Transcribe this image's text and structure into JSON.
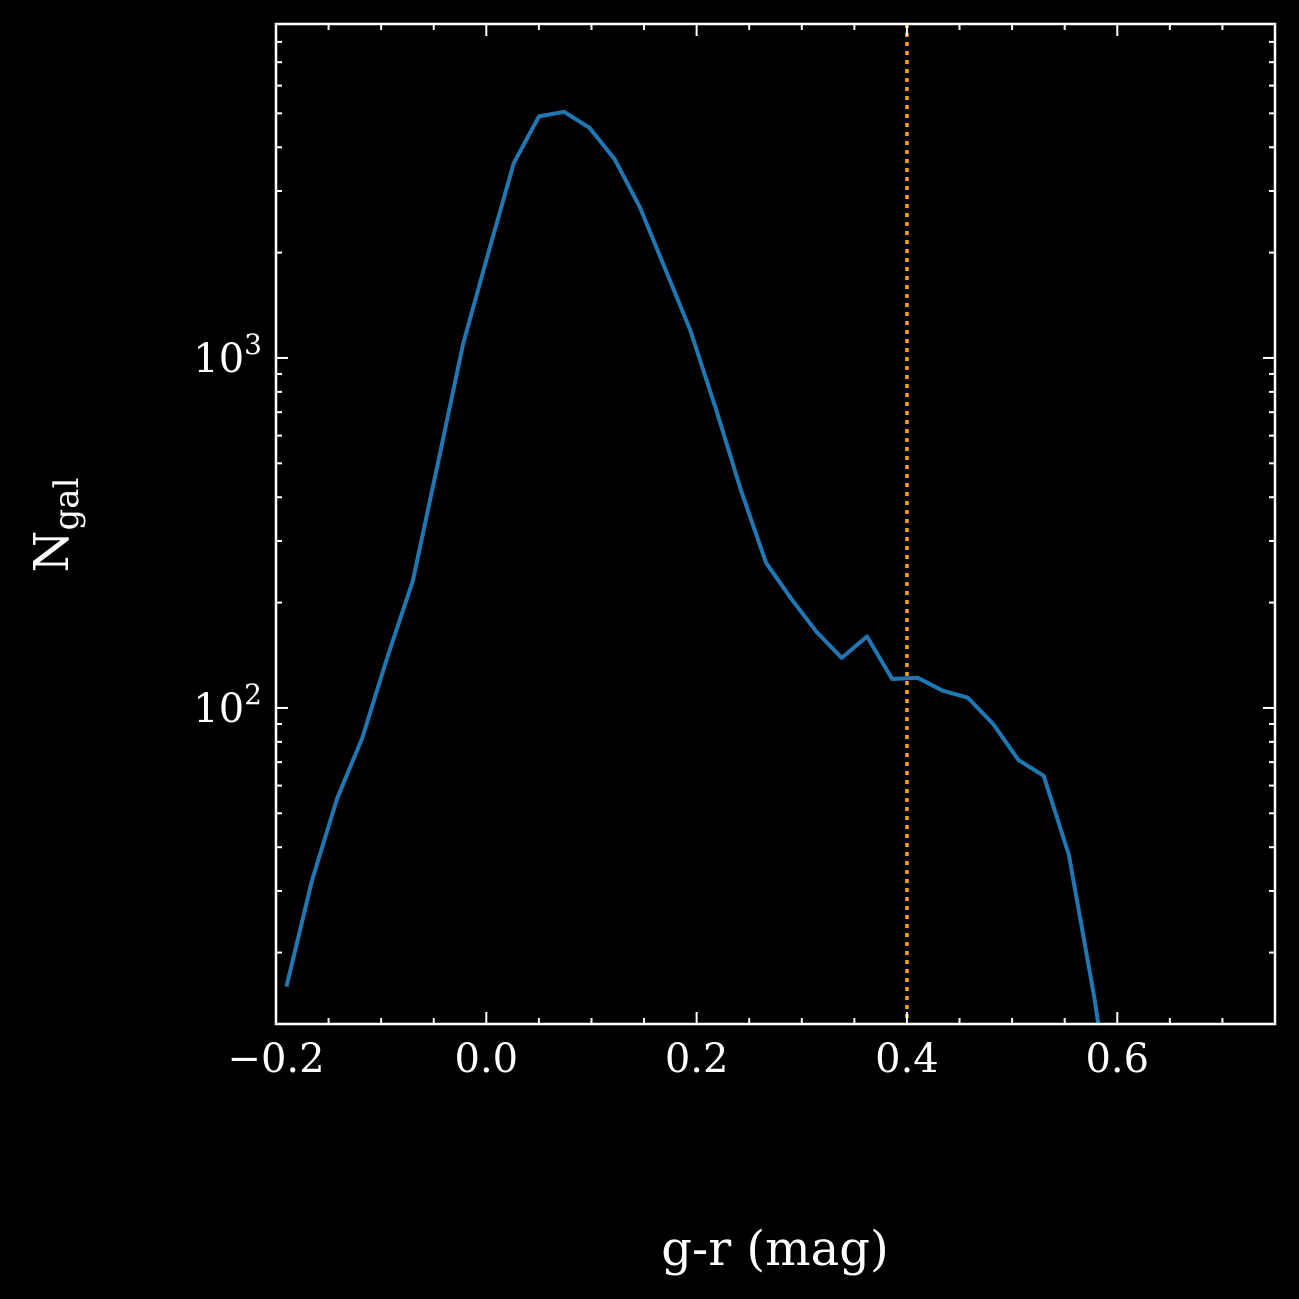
{
  "chart_data": {
    "type": "line",
    "xlabel": "g-r (mag)",
    "ylabel": {
      "main": "N",
      "sub": "gal"
    },
    "xlim": [
      -0.2,
      0.75
    ],
    "ylim": [
      12.5,
      9000
    ],
    "yscale": "log",
    "x_ticks": [
      {
        "value": -0.2,
        "label": "−0.2"
      },
      {
        "value": 0.0,
        "label": "0.0"
      },
      {
        "value": 0.2,
        "label": "0.2"
      },
      {
        "value": 0.4,
        "label": "0.4"
      },
      {
        "value": 0.6,
        "label": "0.6"
      }
    ],
    "y_ticks": [
      {
        "value": 100,
        "base": "10",
        "exp": "2"
      },
      {
        "value": 1000,
        "base": "10",
        "exp": "3"
      }
    ],
    "series": [
      {
        "color": "#1f77b4",
        "x": [
          -0.19,
          -0.166,
          -0.142,
          -0.118,
          -0.094,
          -0.07,
          -0.046,
          -0.022,
          0.002,
          0.026,
          0.05,
          0.074,
          0.098,
          0.122,
          0.146,
          0.17,
          0.194,
          0.218,
          0.242,
          0.266,
          0.29,
          0.314,
          0.338,
          0.362,
          0.386,
          0.41,
          0.434,
          0.458,
          0.482,
          0.506,
          0.53,
          0.554,
          0.578,
          0.582
        ],
        "y": [
          16,
          32,
          55,
          82,
          140,
          230,
          500,
          1100,
          2000,
          3600,
          4900,
          5050,
          4550,
          3700,
          2700,
          1800,
          1200,
          720,
          420,
          260,
          205,
          165,
          139,
          160,
          121,
          122,
          112,
          107,
          90,
          71,
          64,
          38,
          15,
          12.5
        ]
      }
    ],
    "reference_line": {
      "x": 0.4,
      "color": "#ffa500",
      "style": "dotted"
    }
  }
}
